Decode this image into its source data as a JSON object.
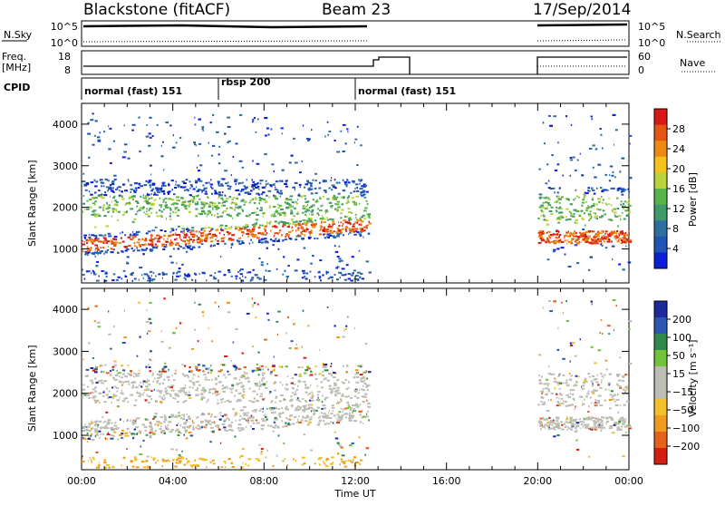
{
  "header": {
    "radar": "Blackstone (fitACF)",
    "beam": "Beam 23",
    "date": "17/Sep/2014"
  },
  "top_panels": {
    "nsky_label": "N.Sky",
    "nsky_ticks": [
      "10^5",
      "10^0"
    ],
    "nsearch_label": "N.Search",
    "nsearch_ticks": [
      "10^5",
      "10^0"
    ],
    "freq_label_1": "Freq.",
    "freq_label_2": "[MHz]",
    "freq_ticks": [
      "18",
      "8"
    ],
    "nave_label": "Nave",
    "nave_ticks": [
      "60",
      "0"
    ],
    "cpid_label": "CPID",
    "cpid_segments": [
      {
        "name": "normal (fast) 151",
        "start": 0.0,
        "end": 6.0
      },
      {
        "name": "rbsp 200",
        "start": 6.0,
        "end": 12.0
      },
      {
        "name": "normal (fast) 151",
        "start": 12.0,
        "end": 24.0
      }
    ]
  },
  "chart_data": [
    {
      "type": "heatmap",
      "name": "power",
      "ylabel": "Slant Range [km]",
      "y_ticks": [
        "1000",
        "2000",
        "3000",
        "4000"
      ],
      "ylim": [
        180,
        4500
      ],
      "xlim": [
        0,
        24
      ],
      "colorbar_label": "Power [dB]",
      "colorbar_ticks": [
        "4",
        "8",
        "12",
        "16",
        "20",
        "24",
        "28"
      ],
      "colors": [
        "#0a1fd6",
        "#1f53b5",
        "#2e6fa0",
        "#3f9a6a",
        "#5ab24a",
        "#b9d43a",
        "#f5c21b",
        "#ee8a12",
        "#e45612",
        "#d81a16"
      ],
      "data_gap_hours": [
        12.6,
        20.0
      ]
    },
    {
      "type": "heatmap",
      "name": "velocity",
      "ylabel": "Slant Range [km]",
      "y_ticks": [
        "1000",
        "2000",
        "3000",
        "4000"
      ],
      "ylim": [
        180,
        4500
      ],
      "xlim": [
        0,
        24
      ],
      "xlabel": "Time UT",
      "x_ticks": [
        "00:00",
        "04:00",
        "08:00",
        "12:00",
        "16:00",
        "20:00",
        "00:00"
      ],
      "colorbar_label": "Velocity [m s⁻¹]",
      "colorbar_ticks": [
        "200",
        "100",
        "50",
        "15",
        "−15",
        "−50",
        "−100",
        "−200"
      ],
      "colors": [
        "#1e2a9a",
        "#2b56b4",
        "#2f8a4a",
        "#72c33a",
        "#bdbdb5",
        "#bdbdb5",
        "#f4c02a",
        "#f09a1e",
        "#e4621a",
        "#d41e14"
      ],
      "data_gap_hours": [
        12.6,
        20.0
      ]
    }
  ]
}
